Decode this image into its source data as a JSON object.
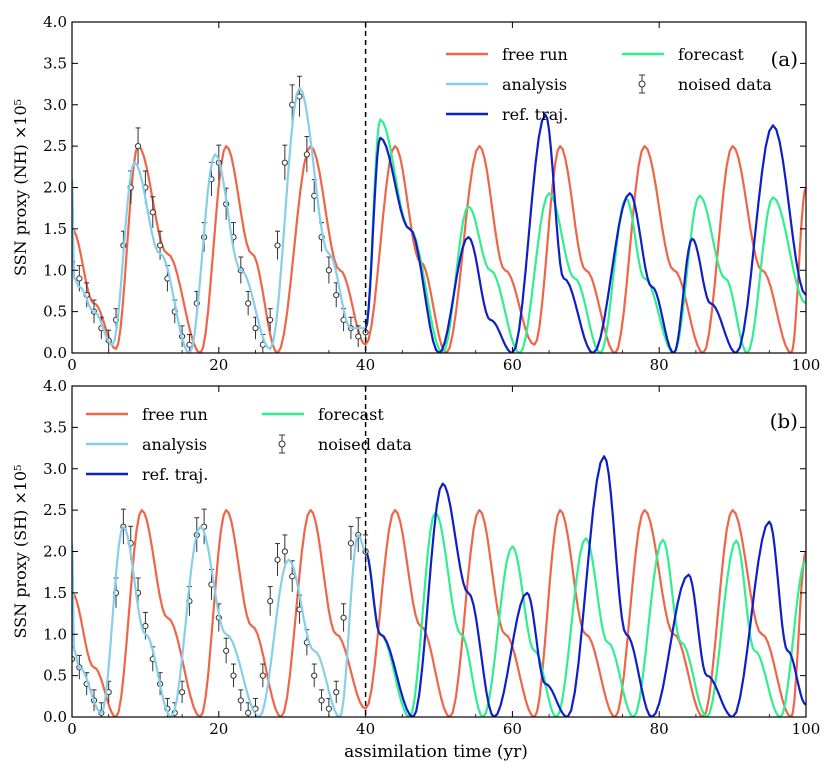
{
  "figure": {
    "xlabel": "assimilation time (yr)",
    "colors": {
      "free_run": "#ef6548",
      "analysis": "#87ceeb",
      "forecast": "#2fef8f",
      "ref_traj": "#0f1fc8",
      "noised_data": "#333333"
    }
  },
  "chart_data": [
    {
      "type": "line",
      "panel_label": "(a)",
      "ylabel": "SSN proxy (NH) ×10⁵",
      "xlabel": "",
      "xlim": [
        0,
        100
      ],
      "ylim": [
        0,
        4
      ],
      "x_ticks": [
        0,
        20,
        40,
        60,
        80,
        100
      ],
      "y_ticks": [
        "0.0",
        "0.5",
        "1.0",
        "1.5",
        "2.0",
        "2.5",
        "3.0",
        "3.5",
        "4.0"
      ],
      "assimilation_end": 40,
      "legend": [
        "free run",
        "analysis",
        "ref. traj.",
        "forecast",
        "noised data"
      ],
      "legend_placement": "top-right",
      "series": [
        {
          "name": "free run",
          "key": "free_run",
          "x": [
            0,
            3,
            6,
            9,
            13,
            17.5,
            21,
            24.5,
            28,
            32.5,
            36.5,
            40,
            44,
            47.5,
            51,
            55.5,
            59,
            63,
            66.5,
            70,
            74,
            78,
            82,
            86,
            90,
            94,
            98,
            100
          ],
          "y": [
            1.5,
            0.6,
            0.05,
            2.5,
            1.2,
            0,
            2.5,
            1.2,
            0,
            2.5,
            1.0,
            0.1,
            2.5,
            1.1,
            0,
            2.5,
            1.0,
            0.1,
            2.5,
            1.0,
            0,
            2.5,
            1.0,
            0,
            2.5,
            1.0,
            0,
            2.0
          ]
        },
        {
          "name": "analysis",
          "key": "analysis",
          "x": [
            0,
            0.3,
            1,
            3,
            5.5,
            8.5,
            12,
            16,
            19.5,
            23,
            27,
            31,
            35,
            38,
            40
          ],
          "y": [
            2.1,
            0.9,
            0.8,
            0.5,
            0.1,
            2.3,
            1.2,
            0,
            2.4,
            1.0,
            0.05,
            3.2,
            1.2,
            0.3,
            0.3
          ]
        },
        {
          "name": "forecast",
          "key": "forecast",
          "x": [
            40,
            42,
            46,
            50.5,
            54,
            57,
            61,
            65,
            68.5,
            72,
            75.5,
            78,
            82,
            85.5,
            89,
            92,
            95.5,
            100
          ],
          "y": [
            0.3,
            2.82,
            1.5,
            0,
            1.77,
            1.0,
            0,
            1.93,
            0.9,
            0,
            1.87,
            0.9,
            0,
            1.9,
            0.9,
            0,
            1.88,
            0.6
          ]
        },
        {
          "name": "ref. traj.",
          "key": "ref_traj",
          "x": [
            40,
            42,
            46,
            50,
            54,
            57,
            60,
            64.5,
            67,
            71,
            76,
            79,
            82,
            84.5,
            87,
            90.5,
            95.5,
            100
          ],
          "y": [
            0.3,
            2.6,
            1.5,
            0,
            1.4,
            0.4,
            0,
            2.88,
            0.9,
            0,
            1.93,
            0.8,
            0,
            1.38,
            0.6,
            0,
            2.75,
            0.7
          ]
        },
        {
          "name": "noised data",
          "key": "noised_data",
          "x": [
            0,
            1,
            2,
            3,
            4,
            5,
            6,
            7,
            8,
            9,
            10,
            11,
            12,
            13,
            14,
            15,
            16,
            17,
            18,
            19,
            20,
            21,
            22,
            23,
            24,
            25,
            26,
            27,
            28,
            29,
            30,
            31,
            32,
            33,
            34,
            35,
            36,
            37,
            38,
            39,
            40
          ],
          "y": [
            1.1,
            0.9,
            0.7,
            0.5,
            0.3,
            0.15,
            0.4,
            1.3,
            2.0,
            2.5,
            2.0,
            1.7,
            1.3,
            0.9,
            0.5,
            0.2,
            0.1,
            0.6,
            1.4,
            2.1,
            2.3,
            1.8,
            1.4,
            1.0,
            0.6,
            0.3,
            0.1,
            0.4,
            1.3,
            2.3,
            3.0,
            3.1,
            2.4,
            1.9,
            1.4,
            1.0,
            0.7,
            0.4,
            0.3,
            0.2,
            0.25
          ]
        }
      ]
    },
    {
      "type": "line",
      "panel_label": "(b)",
      "ylabel": "SSN proxy (SH) ×10⁵",
      "xlabel": "assimilation time (yr)",
      "xlim": [
        0,
        100
      ],
      "ylim": [
        0,
        4
      ],
      "x_ticks": [
        0,
        20,
        40,
        60,
        80,
        100
      ],
      "y_ticks": [
        "0.0",
        "0.5",
        "1.0",
        "1.5",
        "2.0",
        "2.5",
        "3.0",
        "3.5",
        "4.0"
      ],
      "assimilation_end": 40,
      "legend": [
        "free run",
        "analysis",
        "ref. traj.",
        "forecast",
        "noised data"
      ],
      "legend_placement": "top-left",
      "series": [
        {
          "name": "free run",
          "key": "free_run",
          "x": [
            0,
            3,
            6,
            9.5,
            13,
            17.5,
            21,
            24.5,
            28.5,
            32.5,
            36,
            40,
            44,
            47.5,
            51.5,
            55.5,
            59,
            63,
            66.5,
            70,
            74,
            78,
            82,
            86,
            90,
            94,
            98,
            100
          ],
          "y": [
            1.5,
            0.6,
            0,
            2.5,
            1.2,
            0,
            2.5,
            1.1,
            0,
            2.5,
            1.0,
            0.1,
            2.5,
            1.1,
            0,
            2.5,
            1.0,
            0,
            2.5,
            1.0,
            0,
            2.5,
            1.0,
            0,
            2.5,
            1.0,
            0,
            2.0
          ]
        },
        {
          "name": "analysis",
          "key": "analysis",
          "x": [
            0,
            0.3,
            1,
            4,
            7,
            10,
            13.5,
            17.5,
            21,
            25.5,
            29.5,
            33,
            36.5,
            39,
            40
          ],
          "y": [
            2.1,
            0.8,
            0.6,
            0.05,
            2.3,
            1.0,
            0,
            2.3,
            1.0,
            0,
            1.9,
            0.8,
            0,
            2.2,
            2.0
          ]
        },
        {
          "name": "forecast",
          "key": "forecast",
          "x": [
            40,
            42,
            46,
            49.5,
            53,
            56,
            60,
            63,
            66,
            70,
            73,
            76.5,
            80.5,
            83,
            86.5,
            90.5,
            93,
            96.5,
            100
          ],
          "y": [
            2.0,
            1.0,
            0,
            2.47,
            1.0,
            0,
            2.06,
            0.8,
            0,
            2.16,
            0.9,
            0,
            2.14,
            0.9,
            0,
            2.13,
            0.8,
            0,
            1.9
          ]
        },
        {
          "name": "ref. traj.",
          "key": "ref_traj",
          "x": [
            40,
            42,
            46.5,
            50.5,
            54,
            57.5,
            62,
            64.5,
            67.5,
            72.5,
            75.5,
            79,
            84,
            86.5,
            90,
            95,
            97.5,
            100
          ],
          "y": [
            2.0,
            1.0,
            0,
            2.82,
            1.5,
            0,
            1.5,
            0.4,
            0,
            3.15,
            1.0,
            0,
            1.72,
            0.5,
            0,
            2.36,
            0.8,
            0.15
          ]
        },
        {
          "name": "noised data",
          "key": "noised_data",
          "x": [
            0,
            1,
            2,
            3,
            4,
            5,
            6,
            7,
            8,
            9,
            10,
            11,
            12,
            13,
            14,
            15,
            16,
            17,
            18,
            19,
            20,
            21,
            22,
            23,
            24,
            25,
            26,
            27,
            28,
            29,
            30,
            31,
            32,
            33,
            34,
            35,
            36,
            37,
            38,
            39,
            40
          ],
          "y": [
            0.7,
            0.6,
            0.4,
            0.2,
            0.05,
            0.3,
            1.5,
            2.3,
            2.1,
            1.5,
            1.1,
            0.7,
            0.4,
            0.1,
            0.05,
            0.3,
            1.4,
            2.2,
            2.3,
            1.6,
            1.2,
            0.8,
            0.5,
            0.2,
            0.05,
            0.1,
            0.5,
            1.4,
            1.9,
            2.0,
            1.7,
            1.3,
            0.9,
            0.5,
            0.2,
            0.1,
            0.3,
            1.2,
            2.1,
            2.2,
            2.0
          ]
        }
      ]
    }
  ]
}
